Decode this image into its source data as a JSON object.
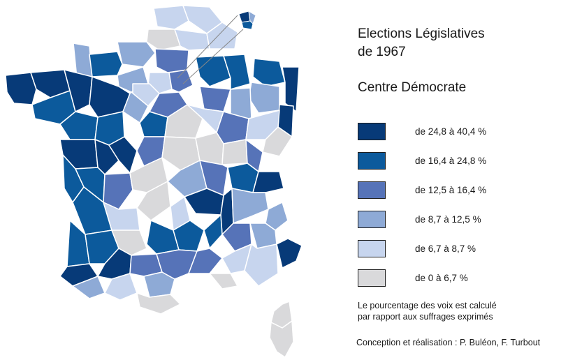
{
  "title": [
    "Elections Législatives",
    "de 1967"
  ],
  "party": "Centre Démocrate",
  "colors": {
    "c1": "#073a78",
    "c2": "#0c5a9c",
    "c3": "#5673b8",
    "c4": "#8eaad6",
    "c5": "#c7d5ee",
    "c6": "#d9d9db"
  },
  "legend": [
    {
      "label": "de 24,8 à 40,4 %",
      "class": "c1"
    },
    {
      "label": "de 16,4 à 24,8 %",
      "class": "c2"
    },
    {
      "label": "de 12,5 à 16,4 %",
      "class": "c3"
    },
    {
      "label": "de 8,7 à 12,5 %",
      "class": "c4"
    },
    {
      "label": "de 6,7 à 8,7 %",
      "class": "c5"
    },
    {
      "label": "de 0 à 6,7 %",
      "class": "c6"
    }
  ],
  "note": [
    "Le pourcentage des voix est calculé",
    "par rapport aux suffrages exprimés"
  ],
  "credit": "Conception et réalisation : P. Buléon, F. Turbout"
}
